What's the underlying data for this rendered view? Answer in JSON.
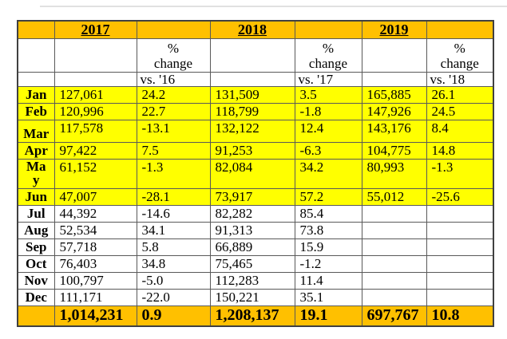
{
  "table": {
    "years": [
      "2017",
      "2018",
      "2019"
    ],
    "pct_change_label": "% change",
    "vs_labels": [
      "vs. '16",
      "vs. '17",
      "vs. '18"
    ],
    "colors": {
      "header_gold": "#FFC000",
      "highlight_yellow": "#FFFF00",
      "border_gray": "#595959"
    },
    "rows": [
      {
        "month": "Jan",
        "v1": "127,061",
        "p1": "24.2",
        "v2": "131,509",
        "p2": "3.5",
        "v3": "165,885",
        "p3": "26.1",
        "highlight": true
      },
      {
        "month": "Feb",
        "v1": "120,996",
        "p1": "22.7",
        "v2": "118,799",
        "p2": "-1.8",
        "v3": "147,926",
        "p3": "24.5",
        "highlight": true
      },
      {
        "month": "Mar",
        "v1": "117,578",
        "p1": "-13.1",
        "v2": "132,122",
        "p2": "12.4",
        "v3": "143,176",
        "p3": "8.4",
        "highlight": true
      },
      {
        "month": "Apr",
        "v1": "97,422",
        "p1": "7.5",
        "v2": "91,253",
        "p2": "-6.3",
        "v3": "104,775",
        "p3": "14.8",
        "highlight": true
      },
      {
        "month": "May",
        "v1": "61,152",
        "p1": "-1.3",
        "v2": "82,084",
        "p2": "34.2",
        "v3": "80,993",
        "p3": "-1.3",
        "highlight": true
      },
      {
        "month": "Jun",
        "v1": "47,007",
        "p1": "-28.1",
        "v2": "73,917",
        "p2": "57.2",
        "v3": "55,012",
        "p3": "-25.6",
        "highlight": true
      },
      {
        "month": "Jul",
        "v1": "44,392",
        "p1": "-14.6",
        "v2": "82,282",
        "p2": "85.4",
        "v3": "",
        "p3": "",
        "highlight": false
      },
      {
        "month": "Aug",
        "v1": "52,534",
        "p1": "34.1",
        "v2": "91,313",
        "p2": "73.8",
        "v3": "",
        "p3": "",
        "highlight": false
      },
      {
        "month": "Sep",
        "v1": "57,718",
        "p1": "5.8",
        "v2": "66,889",
        "p2": "15.9",
        "v3": "",
        "p3": "",
        "highlight": false
      },
      {
        "month": "Oct",
        "v1": "76,403",
        "p1": "34.8",
        "v2": "75,465",
        "p2": "-1.2",
        "v3": "",
        "p3": "",
        "highlight": false
      },
      {
        "month": "Nov",
        "v1": "100,797",
        "p1": "-5.0",
        "v2": "112,283",
        "p2": "11.4",
        "v3": "",
        "p3": "",
        "highlight": false
      },
      {
        "month": "Dec",
        "v1": "111,171",
        "p1": "-22.0",
        "v2": "150,221",
        "p2": "35.1",
        "v3": "",
        "p3": "",
        "highlight": false
      }
    ],
    "totals": {
      "v1": "1,014,231",
      "p1": "0.9",
      "v2": "1,208,137",
      "p2": "19.1",
      "v3": "697,767",
      "p3": "10.8"
    }
  }
}
